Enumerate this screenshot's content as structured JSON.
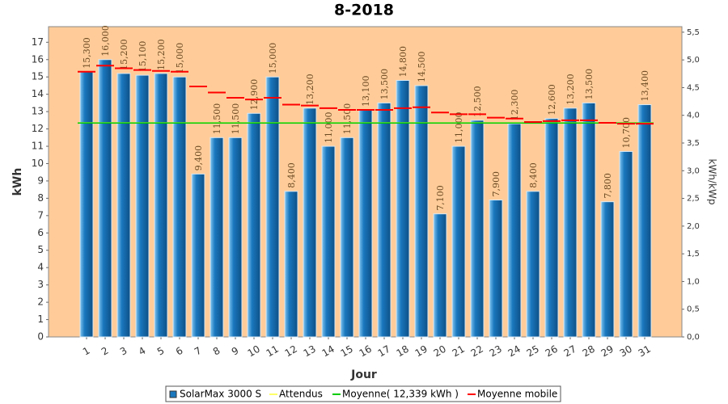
{
  "chart_data": {
    "type": "bar",
    "title": "8-2018",
    "x_label": "Jour",
    "y_label": "kWh",
    "y2_label": "kWh/kWp",
    "categories": [
      "1",
      "2",
      "3",
      "4",
      "5",
      "6",
      "7",
      "8",
      "9",
      "10",
      "11",
      "12",
      "13",
      "14",
      "15",
      "16",
      "17",
      "18",
      "19",
      "20",
      "21",
      "22",
      "23",
      "24",
      "25",
      "26",
      "27",
      "28",
      "29",
      "30",
      "31"
    ],
    "series": [
      {
        "name": "SolarMax 3000 S",
        "color": "#1a78be",
        "kind": "bar",
        "values": [
          15.3,
          16.0,
          15.2,
          15.1,
          15.2,
          15.0,
          9.4,
          11.5,
          11.5,
          12.9,
          15.0,
          8.4,
          13.2,
          11.0,
          11.5,
          13.1,
          13.5,
          14.8,
          14.5,
          7.1,
          11.0,
          12.5,
          7.9,
          12.3,
          8.4,
          12.6,
          13.2,
          13.5,
          7.8,
          10.7,
          13.4
        ],
        "value_labels": [
          "15,300",
          "16,000",
          "15,200",
          "15,100",
          "15,200",
          "15,000",
          "9,400",
          "11,500",
          "11,500",
          "12,900",
          "15,000",
          "8,400",
          "13,200",
          "11,000",
          "11,500",
          "13,100",
          "13,500",
          "14,800",
          "14,500",
          "7,100",
          "11,000",
          "12,500",
          "7,900",
          "12,300",
          "8,400",
          "12,600",
          "13,200",
          "13,500",
          "7,800",
          "10,700",
          "13,400"
        ]
      },
      {
        "name": "Attendus",
        "color": "#ffff66",
        "kind": "hline",
        "value": 12.35
      },
      {
        "name": "Moyenne( 12,339 kWh )",
        "color": "#00cc00",
        "kind": "hline",
        "value": 12.339
      },
      {
        "name": "Moyenne mobile",
        "color": "#ff0000",
        "kind": "dash",
        "values": [
          15.3,
          15.65,
          15.5,
          15.4,
          15.35,
          15.3,
          14.45,
          14.1,
          13.8,
          13.7,
          13.8,
          13.4,
          13.35,
          13.2,
          13.1,
          13.1,
          13.1,
          13.2,
          13.25,
          12.95,
          12.85,
          12.85,
          12.65,
          12.6,
          12.4,
          12.45,
          12.5,
          12.5,
          12.35,
          12.3,
          12.3
        ]
      }
    ],
    "ylim": [
      0,
      17.9
    ],
    "yticks": [
      0,
      1,
      2,
      3,
      4,
      5,
      6,
      7,
      8,
      9,
      10,
      11,
      12,
      13,
      14,
      15,
      16,
      17
    ],
    "y2lim": [
      0,
      5.6
    ],
    "y2ticks": [
      {
        "value": 0,
        "label": "0,0"
      },
      {
        "value": 0.5,
        "label": "0,5"
      },
      {
        "value": 1,
        "label": "1,0"
      },
      {
        "value": 1.5,
        "label": "1,5"
      },
      {
        "value": 2,
        "label": "2,0"
      },
      {
        "value": 2.5,
        "label": "2,5"
      },
      {
        "value": 3,
        "label": "3,0"
      },
      {
        "value": 3.5,
        "label": "3,5"
      },
      {
        "value": 4,
        "label": "4,0"
      },
      {
        "value": 4.5,
        "label": "4,5"
      },
      {
        "value": 5,
        "label": "5,0"
      },
      {
        "value": 5.5,
        "label": "5,5"
      }
    ],
    "background": "#ffcc99"
  }
}
